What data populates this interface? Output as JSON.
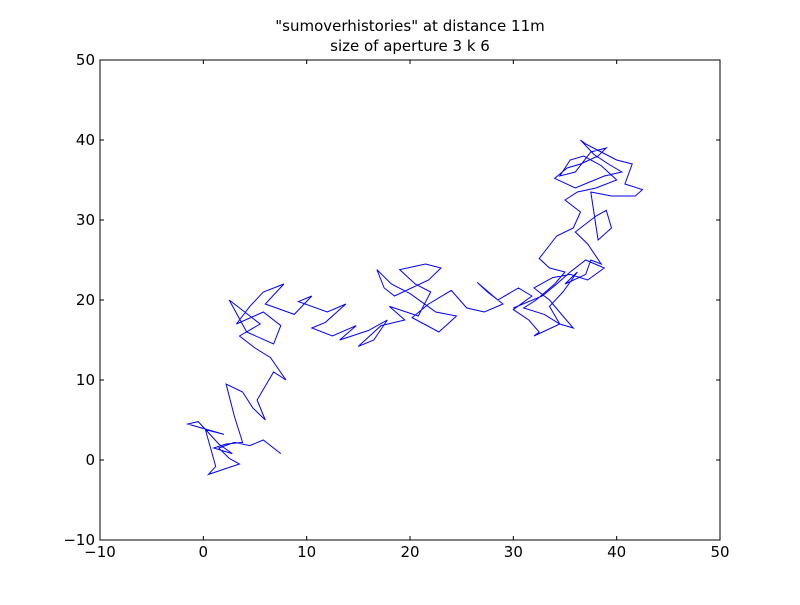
{
  "chart_data": {
    "type": "line",
    "title": "\"sumoverhistories\" at distance 11m",
    "subtitle": "size of aperture 3 k 6",
    "xlabel": "",
    "ylabel": "",
    "xlim": [
      -10,
      50
    ],
    "ylim": [
      -10,
      50
    ],
    "xticks": [
      "−10",
      "0",
      "10",
      "20",
      "30",
      "40",
      "50"
    ],
    "yticks": [
      "−10",
      "0",
      "10",
      "20",
      "30",
      "40",
      "50"
    ],
    "grid": false,
    "legend": "none",
    "series": [
      {
        "color": "#0000ff",
        "x": [
          7.5,
          5.8,
          4.5,
          3.0,
          1.5,
          2.5,
          3.5,
          0.5,
          1.2,
          0.2,
          2.0,
          -1.5,
          -0.5,
          1.5,
          2.8,
          1.0,
          2.2,
          3.8,
          3.0,
          2.2,
          3.8,
          4.8,
          6.0,
          5.2,
          6.8,
          8.0,
          6.5,
          5.0,
          3.5,
          5.5,
          4.0,
          2.5,
          4.2,
          6.8,
          7.5,
          5.8,
          3.2,
          4.5,
          5.8,
          7.8,
          6.0,
          8.8,
          10.5,
          9.2,
          12.0,
          13.8,
          11.8,
          10.5,
          12.5,
          14.8,
          13.2,
          16.0,
          17.8,
          16.5,
          15.0,
          17.2,
          19.5,
          18.0,
          20.8,
          22.0,
          20.5,
          19.0,
          21.5,
          23.0,
          21.8,
          18.5,
          17.5,
          16.8,
          18.2,
          20.0,
          22.5,
          24.5,
          22.8,
          20.2,
          21.8,
          24.0,
          25.5,
          27.2,
          29.0,
          27.5,
          26.5,
          28.5,
          30.5,
          31.8,
          30.0,
          31.5,
          32.5,
          32.0,
          34.5,
          33.5,
          34.8,
          36.2,
          35.0,
          37.0,
          37.5,
          38.5,
          37.2,
          36.0,
          38.0,
          39.0,
          39.5,
          38.2,
          37.5,
          39.5,
          41.8,
          42.5,
          40.8,
          41.5,
          40.0,
          38.5,
          37.0,
          36.5,
          37.8,
          39.2,
          40.5,
          38.8,
          36.0,
          34.0,
          35.2,
          36.5,
          38.2,
          39.0,
          37.5,
          36.0,
          34.5,
          35.5,
          36.8,
          38.5,
          40.0,
          38.0,
          36.2,
          35.0,
          36.5,
          35.8,
          34.2,
          33.0,
          32.5,
          33.5,
          35.0,
          34.0,
          32.2,
          31.0,
          33.0,
          34.5,
          35.8,
          34.8,
          33.5,
          32.0,
          33.8,
          35.5,
          37.2,
          38.8,
          37.0,
          35.5,
          34.2,
          32.8,
          30.0
        ]
      }
    ]
  }
}
